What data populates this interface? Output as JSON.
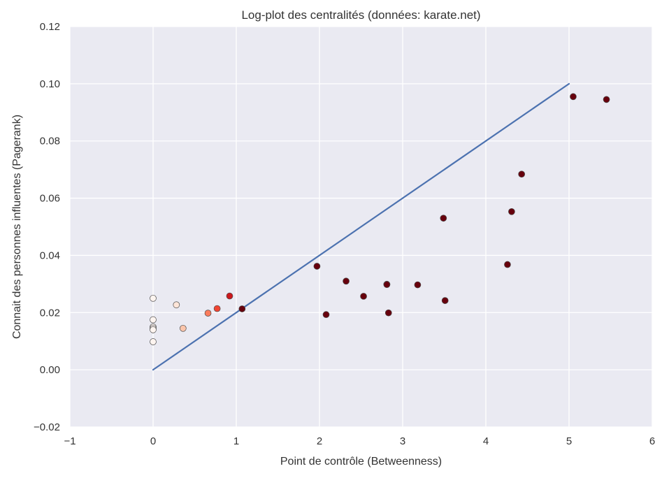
{
  "chart_data": {
    "type": "scatter",
    "title": "Log-plot des centralités (données: karate.net)",
    "xlabel": "Point de contrôle (Betweenness)",
    "ylabel": "Connait des personnes influentes (Pagerank)",
    "xlim": [
      -1,
      6
    ],
    "ylim": [
      -0.02,
      0.12
    ],
    "xticks": [
      -1,
      0,
      1,
      2,
      3,
      4,
      5,
      6
    ],
    "xtick_labels": [
      "−1",
      "0",
      "1",
      "2",
      "3",
      "4",
      "5",
      "6"
    ],
    "yticks": [
      -0.02,
      0.0,
      0.02,
      0.04,
      0.06,
      0.08,
      0.1,
      0.12
    ],
    "ytick_labels": [
      "−0.02",
      "0.00",
      "0.02",
      "0.04",
      "0.06",
      "0.08",
      "0.10",
      "0.12"
    ],
    "grid": true,
    "line": {
      "x": [
        0,
        5
      ],
      "y": [
        0,
        0.1
      ],
      "color": "#4c72b0"
    },
    "points": [
      {
        "x": 0.0,
        "y": 0.025,
        "color": "#fff5f0"
      },
      {
        "x": 0.0,
        "y": 0.0175,
        "color": "#fff5f0"
      },
      {
        "x": 0.0,
        "y": 0.015,
        "color": "#fff5f0"
      },
      {
        "x": 0.0,
        "y": 0.0145,
        "color": "#fff5f0"
      },
      {
        "x": 0.0,
        "y": 0.014,
        "color": "#fff5f0"
      },
      {
        "x": 0.0,
        "y": 0.0098,
        "color": "#fff5f0"
      },
      {
        "x": 0.28,
        "y": 0.0227,
        "color": "#fee5d8"
      },
      {
        "x": 0.36,
        "y": 0.0145,
        "color": "#fcc5ab"
      },
      {
        "x": 0.66,
        "y": 0.0198,
        "color": "#fb7c5c"
      },
      {
        "x": 0.77,
        "y": 0.0214,
        "color": "#f14432"
      },
      {
        "x": 0.92,
        "y": 0.0258,
        "color": "#cb181d"
      },
      {
        "x": 1.07,
        "y": 0.0213,
        "color": "#67000d"
      },
      {
        "x": 1.97,
        "y": 0.0362,
        "color": "#67000d"
      },
      {
        "x": 2.08,
        "y": 0.0193,
        "color": "#67000d"
      },
      {
        "x": 2.32,
        "y": 0.031,
        "color": "#67000d"
      },
      {
        "x": 2.53,
        "y": 0.0257,
        "color": "#67000d"
      },
      {
        "x": 2.81,
        "y": 0.0299,
        "color": "#67000d"
      },
      {
        "x": 2.81,
        "y": 0.0298,
        "color": "#67000d"
      },
      {
        "x": 2.83,
        "y": 0.0199,
        "color": "#67000d"
      },
      {
        "x": 3.18,
        "y": 0.0297,
        "color": "#67000d"
      },
      {
        "x": 3.49,
        "y": 0.053,
        "color": "#67000d"
      },
      {
        "x": 3.51,
        "y": 0.0242,
        "color": "#67000d"
      },
      {
        "x": 4.26,
        "y": 0.0368,
        "color": "#67000d"
      },
      {
        "x": 4.31,
        "y": 0.0553,
        "color": "#67000d"
      },
      {
        "x": 4.43,
        "y": 0.0684,
        "color": "#67000d"
      },
      {
        "x": 5.05,
        "y": 0.0955,
        "color": "#67000d"
      },
      {
        "x": 5.45,
        "y": 0.0945,
        "color": "#67000d"
      }
    ],
    "colors": {
      "plot_background": "#eaeaf2",
      "grid": "#ffffff",
      "text": "#333333"
    }
  }
}
